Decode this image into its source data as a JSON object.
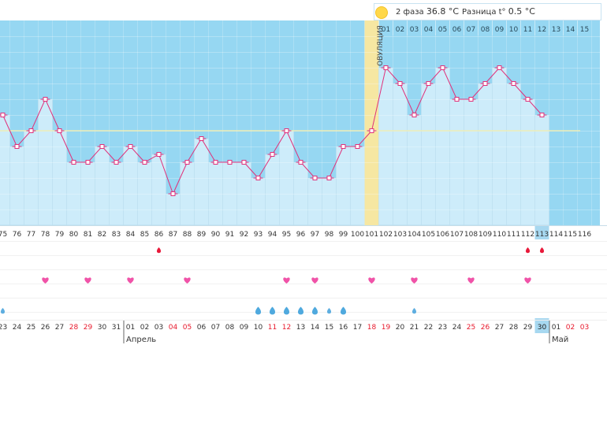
{
  "header": {
    "phase_label": "2 фаза",
    "phase_temp": "36.8 °C",
    "diff_label": "Разница t°",
    "diff_value": "0.5 °C"
  },
  "ovulation_label": "ОВУЛЯЦИЯ",
  "phase2_day_labels": [
    "01",
    "02",
    "03",
    "04",
    "05",
    "06",
    "07",
    "08",
    "09",
    "10",
    "11",
    "12",
    "13",
    "14",
    "15"
  ],
  "chart_data": {
    "type": "line",
    "cycle_days": [
      75,
      76,
      77,
      78,
      79,
      80,
      81,
      82,
      83,
      84,
      85,
      86,
      87,
      88,
      89,
      90,
      91,
      92,
      93,
      94,
      95,
      96,
      97,
      98,
      99,
      100,
      101,
      102,
      103,
      104,
      105,
      106,
      107,
      108,
      109,
      110,
      111,
      112,
      113,
      114,
      115,
      116
    ],
    "temperatures": [
      36.6,
      36.4,
      36.5,
      36.7,
      36.5,
      36.3,
      36.3,
      36.4,
      36.3,
      36.4,
      36.3,
      36.35,
      36.1,
      36.3,
      36.45,
      36.3,
      36.3,
      36.3,
      36.2,
      36.35,
      36.5,
      36.3,
      36.2,
      36.2,
      36.4,
      36.4,
      36.5,
      36.9,
      36.8,
      36.6,
      36.8,
      36.9,
      36.7,
      36.7,
      36.8,
      36.9,
      36.8,
      36.7,
      36.6,
      null,
      null,
      null
    ],
    "coverline": 36.5,
    "ovulation_day": 101,
    "current_day": 113,
    "marks": {
      "blood_days": [
        86,
        112,
        113
      ],
      "heart_days": [
        78,
        81,
        84,
        88,
        95,
        97,
        101,
        104,
        108,
        112
      ],
      "drop_days": [
        75,
        93,
        94,
        95,
        96,
        97,
        98,
        99,
        104
      ],
      "drop_light_days": [
        75,
        98,
        104
      ]
    },
    "dates": [
      {
        "label": "23",
        "weekend": false
      },
      {
        "label": "24",
        "weekend": false
      },
      {
        "label": "25",
        "weekend": false
      },
      {
        "label": "26",
        "weekend": false
      },
      {
        "label": "27",
        "weekend": false
      },
      {
        "label": "28",
        "weekend": true
      },
      {
        "label": "29",
        "weekend": true
      },
      {
        "label": "30",
        "weekend": false
      },
      {
        "label": "31",
        "weekend": false
      },
      {
        "label": "01",
        "weekend": false
      },
      {
        "label": "02",
        "weekend": false
      },
      {
        "label": "03",
        "weekend": false
      },
      {
        "label": "04",
        "weekend": true
      },
      {
        "label": "05",
        "weekend": true
      },
      {
        "label": "06",
        "weekend": false
      },
      {
        "label": "07",
        "weekend": false
      },
      {
        "label": "08",
        "weekend": false
      },
      {
        "label": "09",
        "weekend": false
      },
      {
        "label": "10",
        "weekend": false
      },
      {
        "label": "11",
        "weekend": true
      },
      {
        "label": "12",
        "weekend": true
      },
      {
        "label": "13",
        "weekend": false
      },
      {
        "label": "14",
        "weekend": false
      },
      {
        "label": "15",
        "weekend": false
      },
      {
        "label": "16",
        "weekend": false
      },
      {
        "label": "17",
        "weekend": false
      },
      {
        "label": "18",
        "weekend": true
      },
      {
        "label": "19",
        "weekend": true
      },
      {
        "label": "20",
        "weekend": false
      },
      {
        "label": "21",
        "weekend": false
      },
      {
        "label": "22",
        "weekend": false
      },
      {
        "label": "23",
        "weekend": false
      },
      {
        "label": "24",
        "weekend": false
      },
      {
        "label": "25",
        "weekend": true
      },
      {
        "label": "26",
        "weekend": true
      },
      {
        "label": "27",
        "weekend": false
      },
      {
        "label": "28",
        "weekend": false
      },
      {
        "label": "29",
        "weekend": false
      },
      {
        "label": "30",
        "weekend": false
      },
      {
        "label": "01",
        "weekend": false
      },
      {
        "label": "02",
        "weekend": true
      },
      {
        "label": "03",
        "weekend": true
      }
    ],
    "month_labels": [
      {
        "label": "Апрель",
        "day": 84
      },
      {
        "label": "Май",
        "day": 114
      }
    ],
    "colors": {
      "sky": "#96d7f2",
      "bar": "#cdecfa",
      "bar_border": "#a6d4ec",
      "line": "#e0307a",
      "ovulation": "#f6e7a2",
      "coverline": "#ecedb8",
      "weekend": "#e8192c",
      "current": "#a7d8f0",
      "heart": "#f053a8",
      "blood": "#e8193a",
      "drop": "#4fa9de"
    }
  }
}
